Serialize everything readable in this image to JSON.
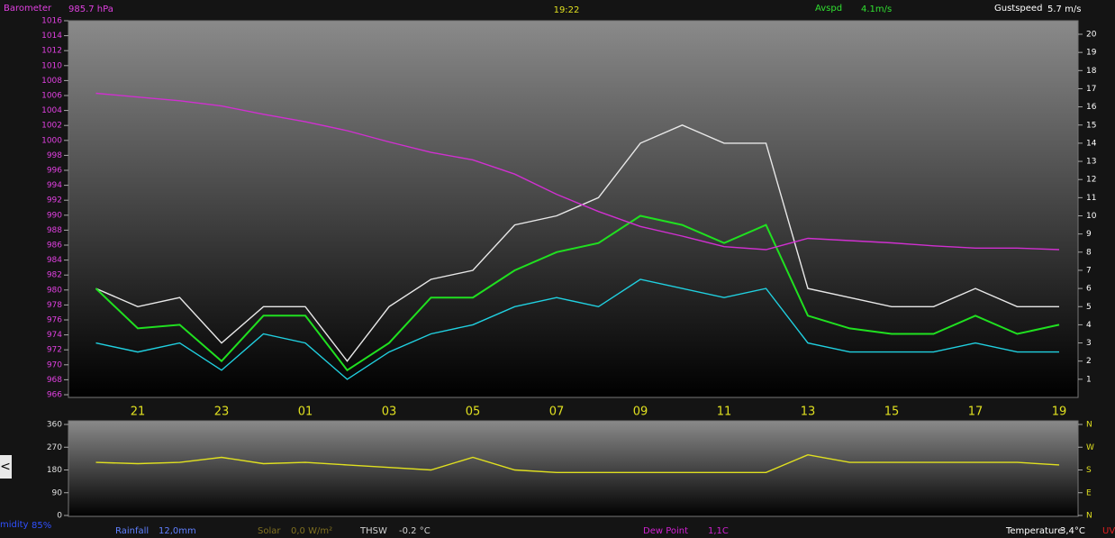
{
  "header": {
    "time": "19:22"
  },
  "chart_data": [
    {
      "type": "line",
      "readouts": [
        {
          "name": "Barometer",
          "value": "985.7 hPa",
          "color": "#e040e0"
        },
        {
          "name": "Avspd",
          "value": "4.1m/s",
          "color": "#30e030"
        },
        {
          "name": "Gustspeed",
          "value": "5.7 m/s",
          "color": "#ffffff"
        }
      ],
      "categories": [
        null,
        "21",
        null,
        "23",
        null,
        "01",
        null,
        "03",
        null,
        "05",
        null,
        "07",
        null,
        "09",
        null,
        "11",
        null,
        "13",
        null,
        "15",
        null,
        "17",
        null,
        "19"
      ],
      "ylim": [
        966,
        1016
      ],
      "yticks": [
        966,
        968,
        970,
        972,
        974,
        976,
        978,
        980,
        982,
        984,
        986,
        988,
        990,
        992,
        994,
        996,
        998,
        1000,
        1002,
        1004,
        1006,
        1008,
        1010,
        1012,
        1014,
        1016
      ],
      "y2lim": [
        0,
        20
      ],
      "y2ticks": [
        1,
        2,
        3,
        4,
        5,
        6,
        7,
        8,
        9,
        10,
        11,
        12,
        13,
        14,
        15,
        16,
        17,
        18,
        19,
        20
      ],
      "series": [
        {
          "name": "Gustspeed",
          "color": "#e8e8e8",
          "axis": "y2",
          "values": [
            6,
            5,
            5.5,
            3,
            5,
            5,
            2,
            5,
            6.5,
            7,
            9.5,
            10,
            11,
            14,
            15,
            14,
            14,
            6,
            5.5,
            5,
            5,
            6,
            5,
            5
          ]
        },
        {
          "color": "#20d0e0",
          "axis": "y2",
          "values": [
            3,
            2.5,
            3,
            1.5,
            3.5,
            3,
            1,
            2.5,
            3.5,
            4,
            5,
            5.5,
            5,
            6.5,
            6,
            5.5,
            6,
            3,
            2.5,
            2.5,
            2.5,
            3,
            2.5,
            2.5
          ]
        },
        {
          "name": "Avspd",
          "color": "#20e020",
          "axis": "y2",
          "values": [
            6,
            3.8,
            4,
            2,
            4.5,
            4.5,
            1.5,
            3,
            5.5,
            5.5,
            7,
            8,
            8.5,
            10,
            9.5,
            8.5,
            9.5,
            4.5,
            3.8,
            3.5,
            3.5,
            4.5,
            3.5,
            4
          ]
        },
        {
          "name": "Barometer",
          "color": "#d030d0",
          "values": [
            1006.3,
            1005.8,
            1005.3,
            1004.6,
            1003.5,
            1002.5,
            1001.3,
            999.8,
            998.4,
            997.4,
            995.5,
            992.8,
            990.5,
            988.5,
            987.2,
            985.8,
            985.4,
            986.9,
            986.6,
            986.3,
            985.9,
            985.6,
            985.6,
            985.4
          ]
        }
      ]
    },
    {
      "type": "line",
      "ylim": [
        0,
        360
      ],
      "yticks": [
        0,
        90,
        180,
        270,
        360
      ],
      "y2lim": [
        0,
        360
      ],
      "y2ticks": [
        {
          "value": 360,
          "label": "N"
        },
        {
          "value": 270,
          "label": "W"
        },
        {
          "value": 180,
          "label": "S"
        },
        {
          "value": 90,
          "label": "E"
        },
        {
          "value": 0,
          "label": "N"
        }
      ],
      "series": [
        {
          "color": "#e0e020",
          "values": [
            210,
            205,
            210,
            230,
            205,
            210,
            200,
            190,
            180,
            230,
            180,
            170,
            170,
            170,
            170,
            170,
            170,
            240,
            210,
            210,
            210,
            210,
            210,
            200
          ]
        }
      ]
    }
  ],
  "nav_button": "<",
  "footer": [
    {
      "name": "midity",
      "value": "85%",
      "color": "#3050ff"
    },
    {
      "name": "Rainfall",
      "value": "12,0mm",
      "color": "#6080ff"
    },
    {
      "name": "Solar",
      "value": "0,0 W/m²",
      "color": "#807020"
    },
    {
      "name": "THSW",
      "value": "-0.2 °C",
      "color": "#d0d0d0"
    },
    {
      "name": "Dew Point",
      "value": "1,1C",
      "color": "#d020d0"
    },
    {
      "name": "Temperature",
      "value": "3,4°C",
      "color": "#ffffff"
    },
    {
      "name": "UV",
      "color": "#e02020"
    }
  ]
}
